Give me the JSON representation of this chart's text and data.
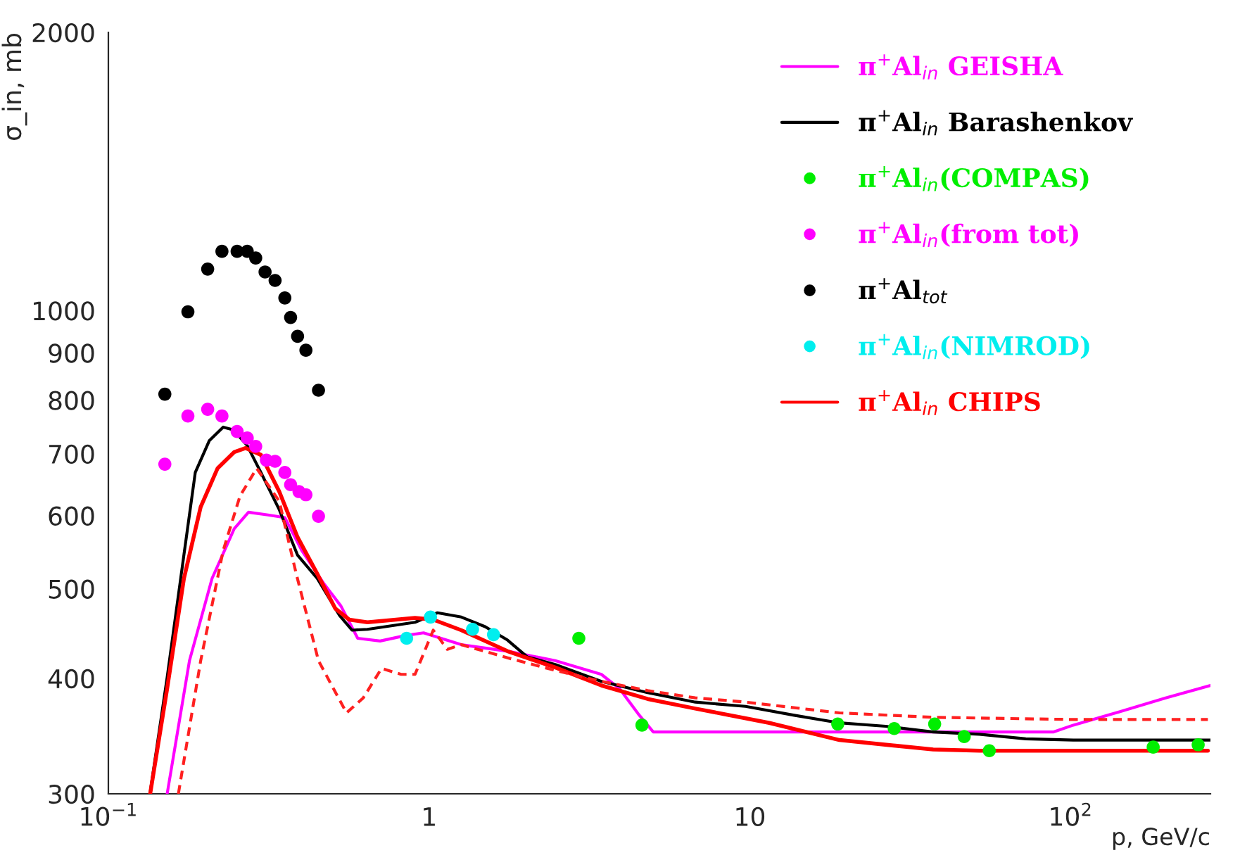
{
  "chart_data": {
    "type": "line",
    "xlabel": "p, GeV/c",
    "ylabel": "σ_in, mb",
    "log": "xy",
    "xlim": [
      0.1,
      273
    ],
    "ylim": [
      300,
      2000
    ],
    "xticks": [
      {
        "value": 0.1,
        "label": "10$^{−1}$"
      },
      1,
      10,
      {
        "value": 100,
        "label": "10$^{2}$"
      }
    ],
    "yticks": [
      300,
      400,
      500,
      600,
      700,
      800,
      900,
      1000,
      2000
    ],
    "grid": false,
    "legend": "top right",
    "series": [
      {
        "name": "π$^{+}$Al$_{in}$ GEISHA",
        "color": "#ff00ff",
        "line_style": "solid",
        "marker": "none",
        "x": [
          0.1525,
          0.179,
          0.2105,
          0.247,
          0.2734,
          0.3146,
          0.355,
          0.401,
          0.4705,
          0.531,
          0.599,
          0.7035,
          0.843,
          0.961,
          1.26,
          1.756,
          2.472,
          3.444,
          3.92,
          4.52,
          5.0,
          11.5,
          88.6,
          102,
          142,
          198,
          273
        ],
        "values": [
          300,
          418,
          513,
          581,
          605,
          601,
          597,
          550,
          506,
          479,
          442,
          439,
          445,
          448,
          435,
          428,
          418,
          404,
          390,
          365,
          350,
          350,
          350,
          356,
          368,
          381,
          393
        ]
      },
      {
        "name": "π$^{+}$Al$_{in}$ Barashenkov",
        "color": "#000000",
        "line_style": "solid",
        "marker": "none",
        "x": [
          0.135,
          0.1525,
          0.172,
          0.1866,
          0.2063,
          0.228,
          0.245,
          0.2706,
          0.299,
          0.341,
          0.3886,
          0.448,
          0.5255,
          0.575,
          0.6425,
          0.904,
          1.062,
          1.26,
          1.495,
          1.756,
          2.022,
          2.472,
          3.444,
          4.8,
          6.76,
          9.7,
          13.65,
          19.03,
          26.5,
          37.3,
          52.0,
          72.5,
          102,
          273
        ],
        "values": [
          301,
          401,
          544,
          668,
          723,
          748,
          743,
          715,
          668,
          609,
          544,
          513,
          468,
          451,
          452,
          460,
          471,
          466,
          455,
          440,
          422,
          414,
          397,
          386,
          377,
          373,
          365,
          358,
          355,
          350,
          348,
          344,
          343,
          343
        ]
      },
      {
        "name": "π$^{+}$Al$_{in}$(COMPAS)",
        "type": "scatter",
        "color": "#00ee00",
        "marker": "circle",
        "x": [
          2.93,
          4.61,
          18.8,
          28.2,
          37.7,
          46.6,
          55.8,
          181,
          250
        ],
        "values": [
          442,
          356,
          357,
          353,
          357,
          346,
          334,
          337,
          339
        ]
      },
      {
        "name": "π$^{+}$Al$_{in}$(from tot)",
        "type": "scatter",
        "color": "#ff00ff",
        "marker": "circle",
        "x": [
          0.15,
          0.177,
          0.204,
          0.226,
          0.252,
          0.271,
          0.288,
          0.311,
          0.331,
          0.355,
          0.37,
          0.393,
          0.413,
          0.452
        ],
        "values": [
          682,
          769,
          782,
          769,
          740,
          728,
          713,
          689,
          687,
          668,
          648,
          637,
          632,
          599
        ]
      },
      {
        "name": "π$^{+}$Al$_{tot}$",
        "type": "scatter",
        "color": "#000000",
        "marker": "circle",
        "x": [
          0.15,
          0.177,
          0.204,
          0.226,
          0.252,
          0.271,
          0.288,
          0.308,
          0.331,
          0.355,
          0.37,
          0.389,
          0.413,
          0.452
        ],
        "values": [
          812,
          997,
          1109,
          1159,
          1159,
          1159,
          1140,
          1101,
          1078,
          1032,
          983,
          938,
          906,
          820
        ]
      },
      {
        "name": "π$^{+}$Al$_{in}$(NIMROD)",
        "type": "scatter",
        "color": "#00eeee",
        "marker": "circle",
        "x": [
          0.851,
          1.01,
          1.366,
          1.588
        ],
        "values": [
          442,
          466,
          452,
          446
        ]
      },
      {
        "name": "π$^{+}$Al$_{in}$ CHIPS",
        "color": "#ff0000",
        "line_style": "solid",
        "marker": "none",
        "x": [
          0.135,
          0.1525,
          0.172,
          0.194,
          0.219,
          0.247,
          0.268,
          0.299,
          0.341,
          0.3886,
          0.448,
          0.51,
          0.5636,
          0.6425,
          0.904,
          1.03,
          1.26,
          1.756,
          2.472,
          3.444,
          4.8,
          6.76,
          11.5,
          19.03,
          37.3,
          52.0,
          102,
          268
        ],
        "values": [
          300,
          390,
          513,
          613,
          675,
          703,
          710,
          698,
          637,
          569,
          519,
          476,
          463,
          460,
          465,
          463,
          451,
          428,
          411,
          393,
          380,
          371,
          358,
          343,
          335,
          334,
          334,
          334
        ]
      },
      {
        "color": "#ff2020",
        "line_style": "dashed",
        "marker": "none",
        "x": [
          0.1653,
          0.194,
          0.228,
          0.2573,
          0.29,
          0.341,
          0.3847,
          0.4519,
          0.5527,
          0.6234,
          0.7105,
          0.818,
          0.904,
          1.03,
          1.14,
          1.26,
          1.756,
          2.472,
          3.444,
          4.8,
          6.76,
          9.7,
          19.03,
          37.3,
          102,
          268
        ],
        "values": [
          300,
          418,
          550,
          630,
          675,
          622,
          520,
          418,
          367,
          381,
          410,
          404,
          404,
          451,
          430,
          435,
          421,
          408,
          397,
          388,
          381,
          377,
          367,
          363,
          361,
          361
        ]
      }
    ]
  }
}
